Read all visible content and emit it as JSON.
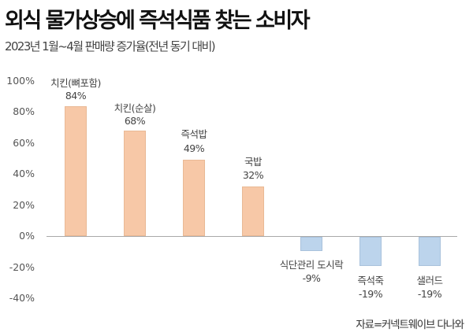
{
  "title": "외식 물가상승에 즉석식품 찾는 소비자",
  "subtitle": "2023년 1월~4월 판매량 증가율(전년 동기 대비)",
  "source": "자료=커넥트웨이브 다나와",
  "colors": {
    "positive": "#f7c8a7",
    "negative": "#bcd4ec",
    "axis": "#a9a9a9"
  },
  "chart_data": {
    "type": "bar",
    "title": "외식 물가상승에 즉석식품 찾는 소비자",
    "subtitle": "2023년 1월~4월 판매량 증가율(전년 동기 대비)",
    "xlabel": "",
    "ylabel": "",
    "ylim": [
      -40,
      100
    ],
    "yticks": [
      "100%",
      "80%",
      "60%",
      "40%",
      "20%",
      "0%",
      "-20%",
      "-40%"
    ],
    "grid": false,
    "legend": null,
    "categories": [
      "치킨(뼈포함)",
      "치킨(순살)",
      "즉석밥",
      "국밥",
      "식단관리 도시락",
      "즉석죽",
      "샐러드"
    ],
    "values": [
      84,
      68,
      49,
      32,
      -9,
      -19,
      -19
    ],
    "value_labels": [
      "84%",
      "68%",
      "49%",
      "32%",
      "-9%",
      "-19%",
      "-19%"
    ],
    "annotation": "자료=커넥트웨이브 다나와"
  }
}
